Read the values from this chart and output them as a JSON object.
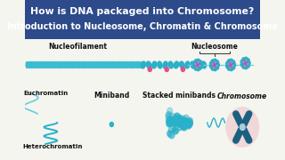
{
  "title_line1": "How is DNA packaged into Chromosome?",
  "title_line2": "Introduction to Nucleosome, Chromatin & Chromosome",
  "title_bg": "#2d4a8a",
  "title_color": "#ffffff",
  "bg_color": "#f5f5f0",
  "teal": "#3bbcd0",
  "teal_dark": "#1a6080",
  "teal_light": "#6dd0e0",
  "purple": "#8866aa",
  "teal2": "#2ab0c8",
  "pink_dot": "#e05090",
  "chromosome_bg": "#f0d8d8",
  "labels": {
    "nucleofilament": "Nucleofilament",
    "nucleosome": "Nucleosome",
    "euchromatin": "Euchromatin",
    "heterochromatin": "Heterochromatin",
    "miniband": "Miniband",
    "stacked_minibands": "Stacked minibands",
    "chromosome": "Chromosome"
  }
}
